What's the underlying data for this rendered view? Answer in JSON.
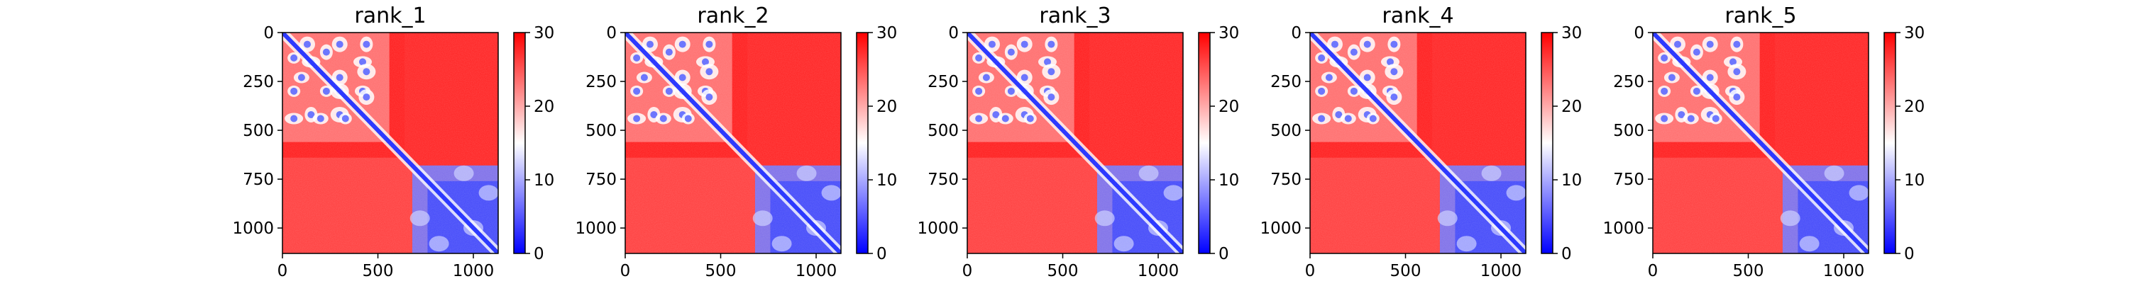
{
  "chart_data": [
    {
      "type": "heatmap",
      "title": "rank_1",
      "xticks": [
        "0",
        "500",
        "1000"
      ],
      "yticks": [
        "0",
        "250",
        "500",
        "750",
        "1000"
      ],
      "xlim": [
        0,
        1130
      ],
      "ylim": [
        1130,
        0
      ],
      "colorbar": {
        "ticks": [
          "0",
          "10",
          "20",
          "30"
        ],
        "range": [
          0,
          30
        ],
        "colors": [
          "#0000ff",
          "#ffffff",
          "#ff0000"
        ]
      }
    },
    {
      "type": "heatmap",
      "title": "rank_2",
      "xticks": [
        "0",
        "500",
        "1000"
      ],
      "yticks": [
        "0",
        "250",
        "500",
        "750",
        "1000"
      ],
      "xlim": [
        0,
        1130
      ],
      "ylim": [
        1130,
        0
      ],
      "colorbar": {
        "ticks": [
          "0",
          "10",
          "20",
          "30"
        ],
        "range": [
          0,
          30
        ],
        "colors": [
          "#0000ff",
          "#ffffff",
          "#ff0000"
        ]
      }
    },
    {
      "type": "heatmap",
      "title": "rank_3",
      "xticks": [
        "0",
        "500",
        "1000"
      ],
      "yticks": [
        "0",
        "250",
        "500",
        "750",
        "1000"
      ],
      "xlim": [
        0,
        1130
      ],
      "ylim": [
        1130,
        0
      ],
      "colorbar": {
        "ticks": [
          "0",
          "10",
          "20",
          "30"
        ],
        "range": [
          0,
          30
        ],
        "colors": [
          "#0000ff",
          "#ffffff",
          "#ff0000"
        ]
      }
    },
    {
      "type": "heatmap",
      "title": "rank_4",
      "xticks": [
        "0",
        "500",
        "1000"
      ],
      "yticks": [
        "0",
        "250",
        "500",
        "750",
        "1000"
      ],
      "xlim": [
        0,
        1130
      ],
      "ylim": [
        1130,
        0
      ],
      "colorbar": {
        "ticks": [
          "0",
          "10",
          "20",
          "30"
        ],
        "range": [
          0,
          30
        ],
        "colors": [
          "#0000ff",
          "#ffffff",
          "#ff0000"
        ]
      }
    },
    {
      "type": "heatmap",
      "title": "rank_5",
      "xticks": [
        "0",
        "500",
        "1000"
      ],
      "yticks": [
        "0",
        "250",
        "500",
        "750",
        "1000"
      ],
      "xlim": [
        0,
        1130
      ],
      "ylim": [
        1130,
        0
      ],
      "colorbar": {
        "ticks": [
          "0",
          "10",
          "20",
          "30"
        ],
        "range": [
          0,
          30
        ],
        "colors": [
          "#0000ff",
          "#ffffff",
          "#ff0000"
        ]
      }
    }
  ]
}
